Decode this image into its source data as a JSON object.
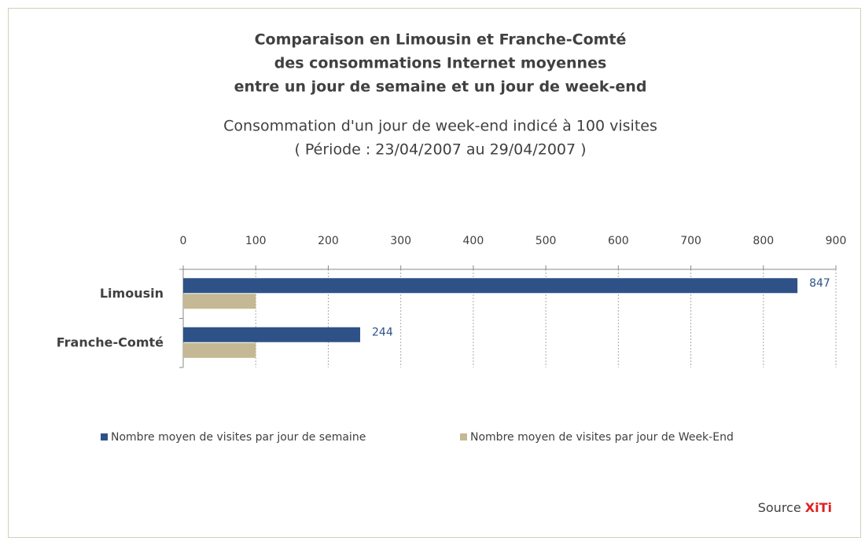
{
  "chart_data": {
    "type": "barh",
    "title": [
      "Comparaison en Limousin et Franche-Comté",
      "des consommations Internet moyennes",
      "entre un jour de semaine et un jour de week-end"
    ],
    "subtitle": [
      "Consommation d'un jour de week-end indicé à 100 visites",
      "( Période : 23/04/2007  au 29/04/2007 )"
    ],
    "categories": [
      "Limousin",
      "Franche-Comté"
    ],
    "series": [
      {
        "name": "Nombre moyen de visites par jour de semaine",
        "color": "#2e5288",
        "values": [
          847,
          244
        ],
        "data_labels": true
      },
      {
        "name": "Nombre moyen de visites par jour de Week-End",
        "color": "#c4b994",
        "values": [
          100,
          100
        ],
        "data_labels": false
      }
    ],
    "xlim": [
      0,
      900
    ],
    "xticks": [
      0,
      100,
      200,
      300,
      400,
      500,
      600,
      700,
      800,
      900
    ],
    "grid": true,
    "legend": "bottom",
    "source": {
      "label": "Source",
      "name": "XiTi"
    }
  }
}
